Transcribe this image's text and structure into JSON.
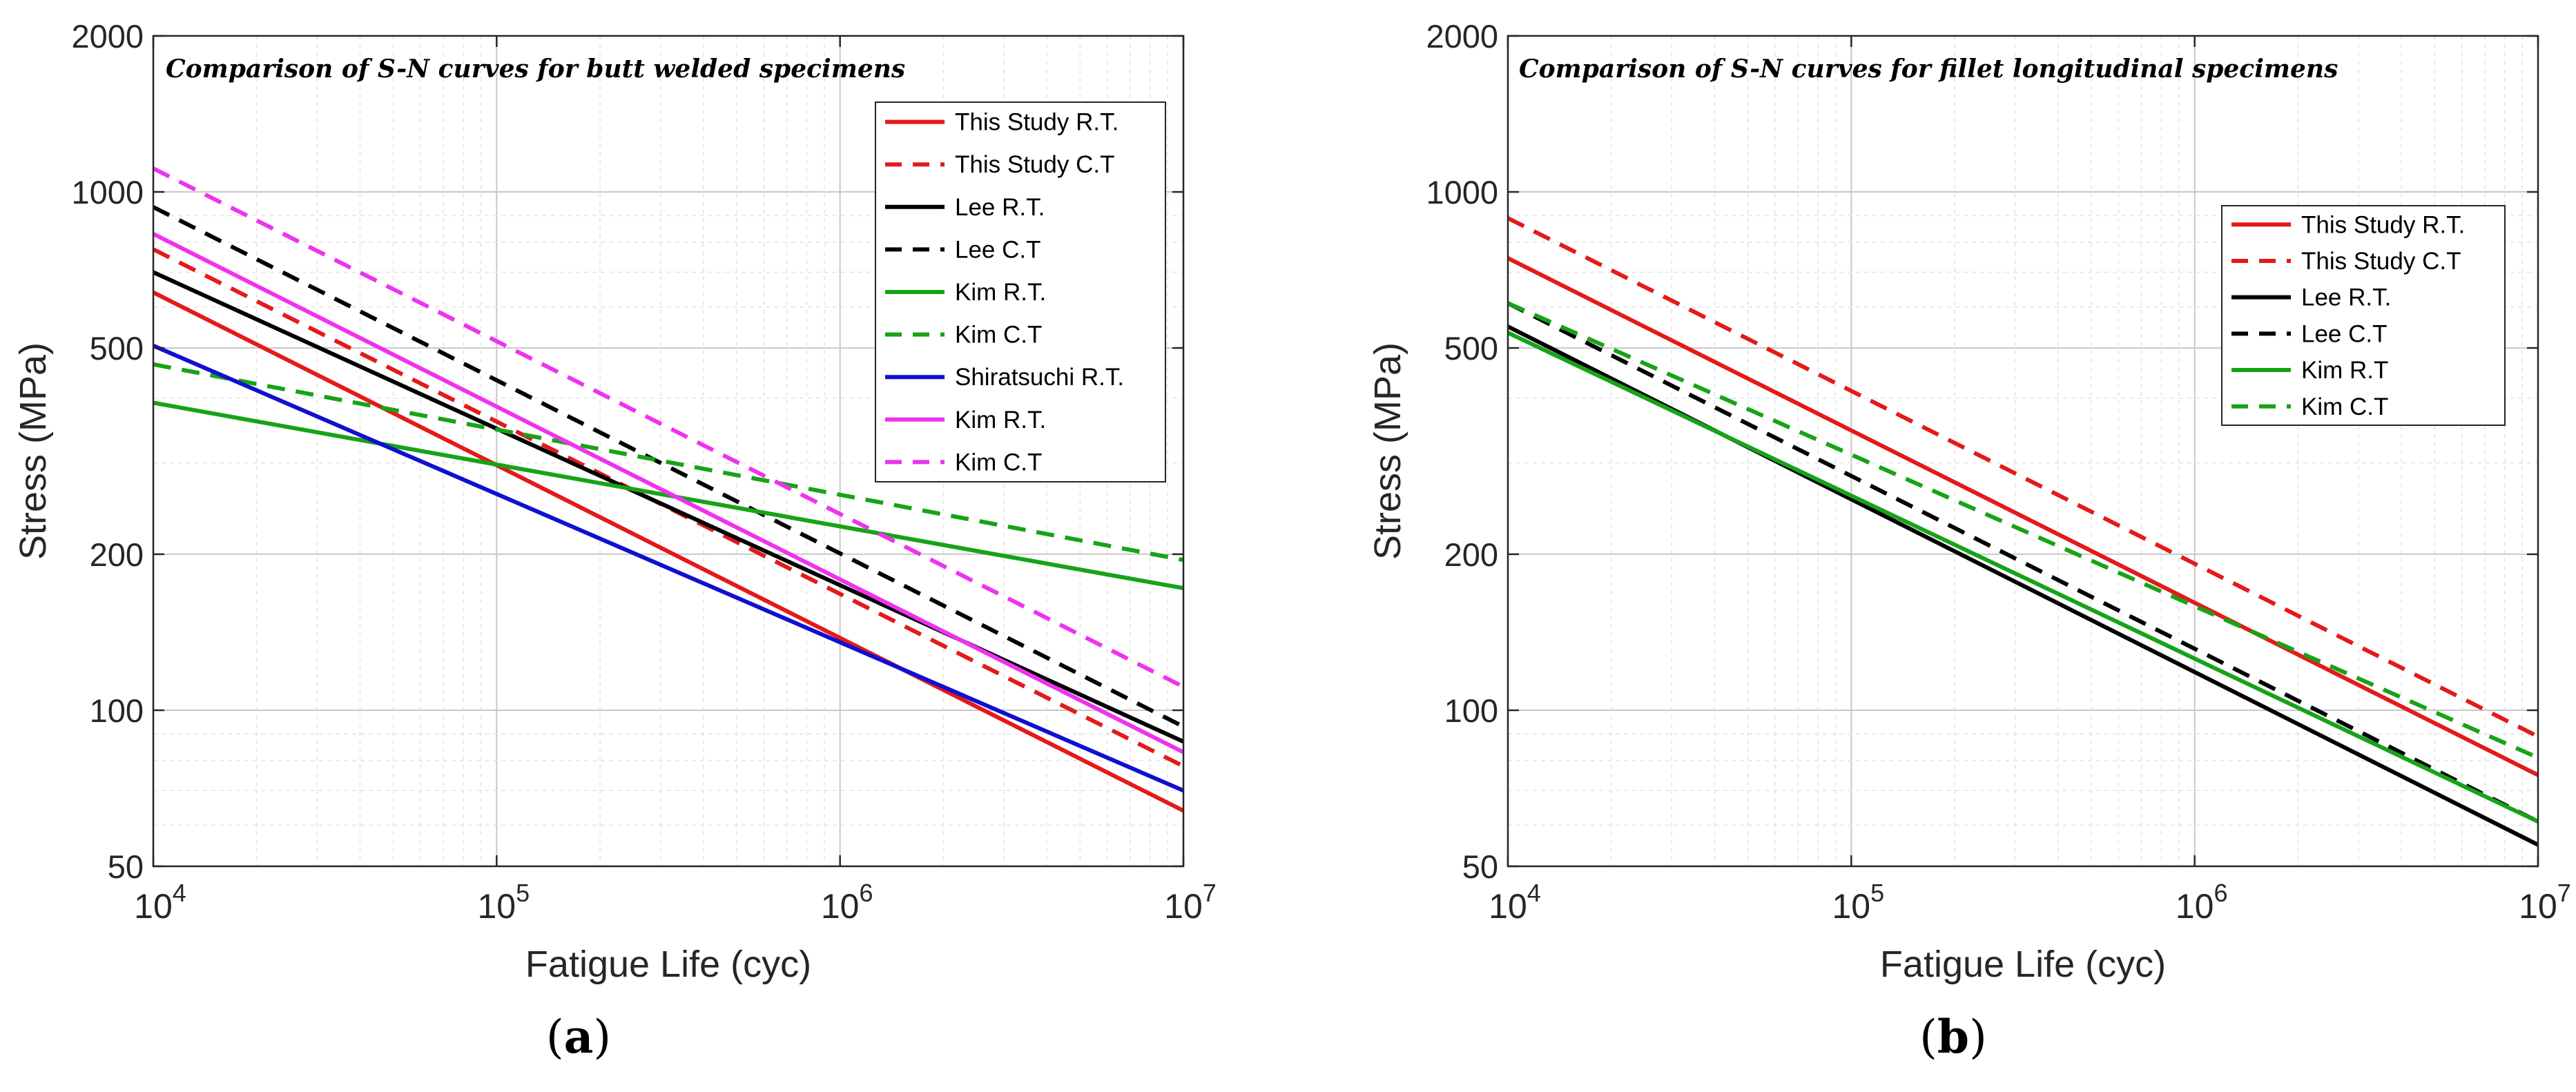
{
  "chart_data": [
    {
      "type": "line",
      "panel_label": "(a)",
      "annotation": "Comparison of S-N curves for butt welded specimens",
      "xlabel": "Fatigue Life (cyc)",
      "ylabel": "Stress (MPa)",
      "xscale": "log",
      "yscale": "log",
      "xlim": [
        10000,
        10000000
      ],
      "ylim": [
        50,
        2000
      ],
      "x_ticks": [
        {
          "value": 10000,
          "base": "10",
          "exp": "4"
        },
        {
          "value": 100000,
          "base": "10",
          "exp": "5"
        },
        {
          "value": 1000000,
          "base": "10",
          "exp": "6"
        },
        {
          "value": 10000000,
          "base": "10",
          "exp": "7"
        }
      ],
      "y_ticks": [
        {
          "value": 50,
          "label": "50"
        },
        {
          "value": 100,
          "label": "100"
        },
        {
          "value": 200,
          "label": "200"
        },
        {
          "value": 500,
          "label": "500"
        },
        {
          "value": 1000,
          "label": "1000"
        },
        {
          "value": 2000,
          "label": "2000"
        }
      ],
      "grid": true,
      "legend_position": "top-right",
      "series": [
        {
          "name": "This Study R.T.",
          "color": "#e41a1a",
          "dash": "solid",
          "x": [
            10000,
            10000000
          ],
          "y": [
            640,
            64
          ]
        },
        {
          "name": "This Study C.T",
          "color": "#e41a1a",
          "dash": "dashed",
          "x": [
            10000,
            10000000
          ],
          "y": [
            775,
            78
          ]
        },
        {
          "name": "Lee R.T.",
          "color": "#000000",
          "dash": "solid",
          "x": [
            10000,
            10000000
          ],
          "y": [
            700,
            87
          ]
        },
        {
          "name": "Lee C.T",
          "color": "#000000",
          "dash": "dashed",
          "x": [
            10000,
            10000000
          ],
          "y": [
            935,
            93
          ]
        },
        {
          "name": "Kim R.T.",
          "color": "#17a317",
          "dash": "solid",
          "x": [
            10000,
            10000000
          ],
          "y": [
            392,
            172
          ]
        },
        {
          "name": "Kim C.T",
          "color": "#17a317",
          "dash": "dashed",
          "x": [
            10000,
            10000000
          ],
          "y": [
            465,
            195
          ]
        },
        {
          "name": "Shiratsuchi R.T.",
          "color": "#1010d0",
          "dash": "solid",
          "x": [
            10000,
            10000000
          ],
          "y": [
            505,
            70
          ]
        },
        {
          "name": "Kim R.T.",
          "color": "#ee33ee",
          "dash": "solid",
          "x": [
            10000,
            10000000
          ],
          "y": [
            830,
            83
          ]
        },
        {
          "name": "Kim C.T",
          "color": "#ee33ee",
          "dash": "dashed",
          "x": [
            10000,
            10000000
          ],
          "y": [
            1110,
            111
          ]
        }
      ]
    },
    {
      "type": "line",
      "panel_label": "(b)",
      "annotation": "Comparison of S-N curves for fillet longitudinal specimens",
      "xlabel": "Fatigue Life (cyc)",
      "ylabel": "Stress (MPa)",
      "xscale": "log",
      "yscale": "log",
      "xlim": [
        10000,
        10000000
      ],
      "ylim": [
        50,
        2000
      ],
      "x_ticks": [
        {
          "value": 10000,
          "base": "10",
          "exp": "4"
        },
        {
          "value": 100000,
          "base": "10",
          "exp": "5"
        },
        {
          "value": 1000000,
          "base": "10",
          "exp": "6"
        },
        {
          "value": 10000000,
          "base": "10",
          "exp": "7"
        }
      ],
      "y_ticks": [
        {
          "value": 50,
          "label": "50"
        },
        {
          "value": 100,
          "label": "100"
        },
        {
          "value": 200,
          "label": "200"
        },
        {
          "value": 500,
          "label": "500"
        },
        {
          "value": 1000,
          "label": "1000"
        },
        {
          "value": 2000,
          "label": "2000"
        }
      ],
      "grid": true,
      "legend_position": "upper-right",
      "series": [
        {
          "name": "This Study R.T.",
          "color": "#e41a1a",
          "dash": "solid",
          "x": [
            10000,
            10000000
          ],
          "y": [
            745,
            75
          ]
        },
        {
          "name": "This Study C.T",
          "color": "#e41a1a",
          "dash": "dashed",
          "x": [
            10000,
            10000000
          ],
          "y": [
            890,
            89
          ]
        },
        {
          "name": "Lee R.T.",
          "color": "#000000",
          "dash": "solid",
          "x": [
            10000,
            10000000
          ],
          "y": [
            550,
            55
          ]
        },
        {
          "name": "Lee C.T",
          "color": "#000000",
          "dash": "dashed",
          "x": [
            10000,
            10000000
          ],
          "y": [
            610,
            61
          ]
        },
        {
          "name": "Kim R.T",
          "color": "#17a317",
          "dash": "solid",
          "x": [
            10000,
            10000000
          ],
          "y": [
            535,
            61
          ]
        },
        {
          "name": "Kim C.T",
          "color": "#17a317",
          "dash": "dashed",
          "x": [
            10000,
            10000000
          ],
          "y": [
            610,
            81
          ]
        }
      ]
    }
  ]
}
